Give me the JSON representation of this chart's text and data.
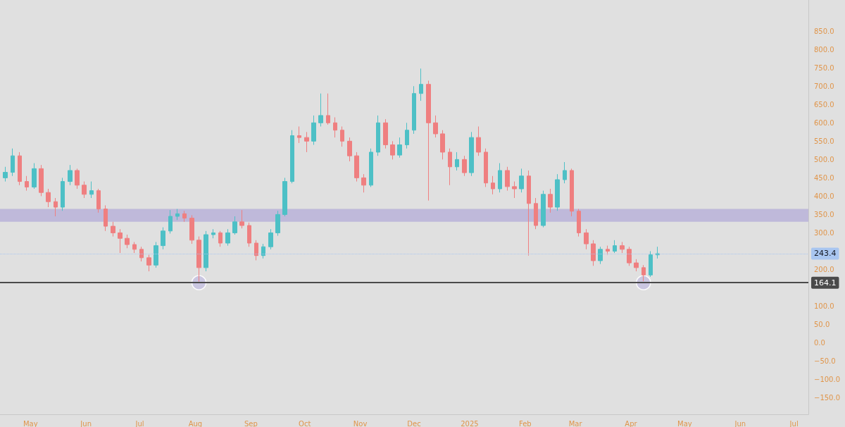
{
  "chart_data": {
    "type": "candlestick",
    "x": [
      "2024-04-17",
      "2024-04-21",
      "2024-04-25",
      "2024-04-29",
      "2024-05-03",
      "2024-05-07",
      "2024-05-11",
      "2024-05-15",
      "2024-05-19",
      "2024-05-23",
      "2024-05-27",
      "2024-05-31",
      "2024-06-04",
      "2024-06-08",
      "2024-06-12",
      "2024-06-16",
      "2024-06-20",
      "2024-06-24",
      "2024-06-28",
      "2024-07-02",
      "2024-07-06",
      "2024-07-10",
      "2024-07-14",
      "2024-07-18",
      "2024-07-22",
      "2024-07-26",
      "2024-07-30",
      "2024-08-03",
      "2024-08-07",
      "2024-08-11",
      "2024-08-15",
      "2024-08-19",
      "2024-08-23",
      "2024-08-27",
      "2024-08-31",
      "2024-09-04",
      "2024-09-08",
      "2024-09-12",
      "2024-09-16",
      "2024-09-20",
      "2024-09-24",
      "2024-09-28",
      "2024-10-02",
      "2024-10-06",
      "2024-10-10",
      "2024-10-14",
      "2024-10-18",
      "2024-10-22",
      "2024-10-26",
      "2024-10-30",
      "2024-11-03",
      "2024-11-07",
      "2024-11-11",
      "2024-11-15",
      "2024-11-19",
      "2024-11-23",
      "2024-11-27",
      "2024-12-01",
      "2024-12-05",
      "2024-12-09",
      "2024-12-13",
      "2024-12-17",
      "2024-12-21",
      "2024-12-25",
      "2024-12-29",
      "2025-01-02",
      "2025-01-06",
      "2025-01-10",
      "2025-01-14",
      "2025-01-18",
      "2025-01-22",
      "2025-01-26",
      "2025-01-30",
      "2025-02-03",
      "2025-02-07",
      "2025-02-11",
      "2025-02-15",
      "2025-02-19",
      "2025-02-23",
      "2025-02-27",
      "2025-03-03",
      "2025-03-07",
      "2025-03-11",
      "2025-03-15",
      "2025-03-19",
      "2025-03-23",
      "2025-03-27",
      "2025-03-31",
      "2025-04-04",
      "2025-04-08",
      "2025-04-12",
      "2025-04-16"
    ],
    "series": [
      {
        "ohlc": [
          [
            450,
            480,
            440,
            465
          ],
          [
            465,
            530,
            455,
            510
          ],
          [
            510,
            520,
            430,
            440
          ],
          [
            440,
            455,
            415,
            425
          ],
          [
            425,
            490,
            420,
            475
          ],
          [
            475,
            485,
            400,
            410
          ],
          [
            410,
            420,
            370,
            385
          ],
          [
            385,
            395,
            345,
            370
          ],
          [
            370,
            450,
            360,
            440
          ],
          [
            440,
            485,
            430,
            470
          ],
          [
            470,
            475,
            420,
            430
          ],
          [
            430,
            440,
            395,
            405
          ],
          [
            405,
            440,
            395,
            415
          ],
          [
            415,
            420,
            355,
            365
          ],
          [
            365,
            375,
            305,
            318
          ],
          [
            318,
            330,
            290,
            300
          ],
          [
            300,
            310,
            245,
            285
          ],
          [
            285,
            295,
            258,
            268
          ],
          [
            268,
            275,
            245,
            255
          ],
          [
            255,
            262,
            222,
            232
          ],
          [
            232,
            240,
            195,
            212
          ],
          [
            212,
            275,
            205,
            265
          ],
          [
            265,
            315,
            255,
            305
          ],
          [
            305,
            362,
            298,
            345
          ],
          [
            345,
            365,
            335,
            352
          ],
          [
            352,
            360,
            330,
            340
          ],
          [
            340,
            348,
            270,
            280
          ],
          [
            280,
            290,
            167,
            205
          ],
          [
            205,
            305,
            195,
            295
          ],
          [
            295,
            310,
            285,
            300
          ],
          [
            300,
            305,
            262,
            272
          ],
          [
            272,
            310,
            265,
            300
          ],
          [
            300,
            345,
            295,
            330
          ],
          [
            330,
            362,
            312,
            320
          ],
          [
            320,
            328,
            262,
            272
          ],
          [
            272,
            280,
            225,
            238
          ],
          [
            238,
            270,
            230,
            262
          ],
          [
            262,
            310,
            255,
            300
          ],
          [
            300,
            360,
            292,
            350
          ],
          [
            350,
            450,
            345,
            440
          ],
          [
            440,
            580,
            435,
            565
          ],
          [
            565,
            590,
            545,
            560
          ],
          [
            560,
            575,
            520,
            550
          ],
          [
            550,
            620,
            540,
            600
          ],
          [
            600,
            680,
            590,
            620
          ],
          [
            620,
            680,
            595,
            600
          ],
          [
            600,
            615,
            560,
            580
          ],
          [
            580,
            590,
            535,
            550
          ],
          [
            550,
            560,
            495,
            510
          ],
          [
            510,
            520,
            440,
            450
          ],
          [
            450,
            460,
            410,
            430
          ],
          [
            430,
            530,
            425,
            520
          ],
          [
            520,
            620,
            510,
            600
          ],
          [
            600,
            610,
            530,
            540
          ],
          [
            540,
            550,
            500,
            512
          ],
          [
            512,
            560,
            505,
            540
          ],
          [
            540,
            600,
            530,
            580
          ],
          [
            580,
            700,
            570,
            680
          ],
          [
            680,
            748,
            660,
            705
          ],
          [
            705,
            715,
            388,
            600
          ],
          [
            600,
            620,
            560,
            570
          ],
          [
            570,
            580,
            500,
            520
          ],
          [
            520,
            530,
            430,
            480
          ],
          [
            480,
            520,
            470,
            500
          ],
          [
            500,
            510,
            455,
            464
          ],
          [
            464,
            575,
            455,
            560
          ],
          [
            560,
            590,
            510,
            520
          ],
          [
            520,
            530,
            425,
            436
          ],
          [
            436,
            455,
            405,
            420
          ],
          [
            420,
            490,
            410,
            470
          ],
          [
            470,
            480,
            415,
            426
          ],
          [
            426,
            440,
            395,
            420
          ],
          [
            420,
            475,
            410,
            455
          ],
          [
            455,
            470,
            238,
            380
          ],
          [
            380,
            395,
            310,
            320
          ],
          [
            320,
            415,
            315,
            405
          ],
          [
            405,
            420,
            355,
            370
          ],
          [
            370,
            460,
            360,
            445
          ],
          [
            445,
            493,
            435,
            470
          ],
          [
            470,
            475,
            345,
            359
          ],
          [
            359,
            365,
            290,
            300
          ],
          [
            300,
            310,
            255,
            270
          ],
          [
            270,
            280,
            210,
            224
          ],
          [
            224,
            262,
            215,
            255
          ],
          [
            255,
            265,
            240,
            250
          ],
          [
            250,
            280,
            245,
            265
          ],
          [
            265,
            275,
            245,
            255
          ],
          [
            255,
            262,
            210,
            218
          ],
          [
            218,
            228,
            195,
            205
          ],
          [
            205,
            212,
            168,
            185
          ],
          [
            185,
            250,
            180,
            240
          ],
          [
            240,
            262,
            230,
            243.4
          ]
        ],
        "colors": [
          "#4dc0c6",
          "#4dc0c6",
          "#ef7f80",
          "#ef7f80",
          "#4dc0c6",
          "#ef7f80",
          "#ef7f80",
          "#ef7f80",
          "#4dc0c6",
          "#4dc0c6",
          "#ef7f80",
          "#ef7f80",
          "#4dc0c6",
          "#ef7f80",
          "#ef7f80",
          "#ef7f80",
          "#ef7f80",
          "#ef7f80",
          "#ef7f80",
          "#ef7f80",
          "#ef7f80",
          "#4dc0c6",
          "#4dc0c6",
          "#4dc0c6",
          "#4dc0c6",
          "#ef7f80",
          "#ef7f80",
          "#ef7f80",
          "#4dc0c6",
          "#4dc0c6",
          "#ef7f80",
          "#4dc0c6",
          "#4dc0c6",
          "#ef7f80",
          "#ef7f80",
          "#ef7f80",
          "#4dc0c6",
          "#4dc0c6",
          "#4dc0c6",
          "#4dc0c6",
          "#4dc0c6",
          "#ef7f80",
          "#ef7f80",
          "#4dc0c6",
          "#4dc0c6",
          "#ef7f80",
          "#ef7f80",
          "#ef7f80",
          "#ef7f80",
          "#ef7f80",
          "#ef7f80",
          "#4dc0c6",
          "#4dc0c6",
          "#ef7f80",
          "#ef7f80",
          "#4dc0c6",
          "#4dc0c6",
          "#4dc0c6",
          "#4dc0c6",
          "#ef7f80",
          "#ef7f80",
          "#ef7f80",
          "#ef7f80",
          "#4dc0c6",
          "#ef7f80",
          "#4dc0c6",
          "#ef7f80",
          "#ef7f80",
          "#ef7f80",
          "#4dc0c6",
          "#ef7f80",
          "#ef7f80",
          "#4dc0c6",
          "#ef7f80",
          "#ef7f80",
          "#4dc0c6",
          "#ef7f80",
          "#4dc0c6",
          "#4dc0c6",
          "#ef7f80",
          "#ef7f80",
          "#ef7f80",
          "#ef7f80",
          "#4dc0c6",
          "#ef7f80",
          "#4dc0c6",
          "#ef7f80",
          "#ef7f80",
          "#ef7f80",
          "#ef7f80",
          "#4dc0c6",
          "#4dc0c6"
        ]
      },
      {
        "type": "scatter",
        "color": "#c8c3e0",
        "x": [
          "2024-08-03",
          "2025-04-08"
        ],
        "values": [
          164.1,
          164.1
        ]
      }
    ],
    "xlim": [
      "2024-04-14",
      "2025-07-09"
    ],
    "xticks": [
      {
        "value": "2024-05-01",
        "label": "May"
      },
      {
        "value": "2024-06-01",
        "label": "Jun"
      },
      {
        "value": "2024-07-01",
        "label": "Jul"
      },
      {
        "value": "2024-08-01",
        "label": "Aug"
      },
      {
        "value": "2024-09-01",
        "label": "Sep"
      },
      {
        "value": "2024-10-01",
        "label": "Oct"
      },
      {
        "value": "2024-11-01",
        "label": "Nov"
      },
      {
        "value": "2024-12-01",
        "label": "Dec"
      },
      {
        "value": "2025-01-01",
        "label": "2025"
      },
      {
        "value": "2025-02-01",
        "label": "Feb"
      },
      {
        "value": "2025-03-01",
        "label": "Mar"
      },
      {
        "value": "2025-04-01",
        "label": "Apr"
      },
      {
        "value": "2025-05-01",
        "label": "May"
      },
      {
        "value": "2025-06-01",
        "label": "Jun"
      },
      {
        "value": "2025-07-01",
        "label": "Jul"
      }
    ],
    "ylim": [
      -195,
      935
    ],
    "yticks": [
      {
        "value": -150,
        "label": "−150.0"
      },
      {
        "value": -100,
        "label": "−100.0"
      },
      {
        "value": -50,
        "label": "−50.0"
      },
      {
        "value": 0,
        "label": "0.0"
      },
      {
        "value": 50,
        "label": "50.0"
      },
      {
        "value": 100,
        "label": "100.0"
      },
      {
        "value": 200,
        "label": "200.0"
      },
      {
        "value": 300,
        "label": "300.0"
      },
      {
        "value": 350,
        "label": "350.0"
      },
      {
        "value": 400,
        "label": "400.0"
      },
      {
        "value": 450,
        "label": "450.0"
      },
      {
        "value": 500,
        "label": "500.0"
      },
      {
        "value": 550,
        "label": "550.0"
      },
      {
        "value": 600,
        "label": "600.0"
      },
      {
        "value": 650,
        "label": "650.0"
      },
      {
        "value": 700,
        "label": "700.0"
      },
      {
        "value": 750,
        "label": "750.0"
      },
      {
        "value": 800,
        "label": "800.0"
      },
      {
        "value": 850,
        "label": "850.0"
      }
    ],
    "ref_lines": [
      {
        "axis": "y",
        "value": 164.1,
        "label": "164.1",
        "color": "#4a4a4a",
        "line_style": "solid"
      },
      {
        "axis": "y",
        "value": 243.4,
        "label": "243.4",
        "color": "#a9c6f0",
        "line_style": "dotted"
      }
    ],
    "bands": [
      {
        "axis": "y",
        "from": 330,
        "to": 365,
        "color": "#b8b2d8"
      }
    ],
    "marker": "circle"
  }
}
